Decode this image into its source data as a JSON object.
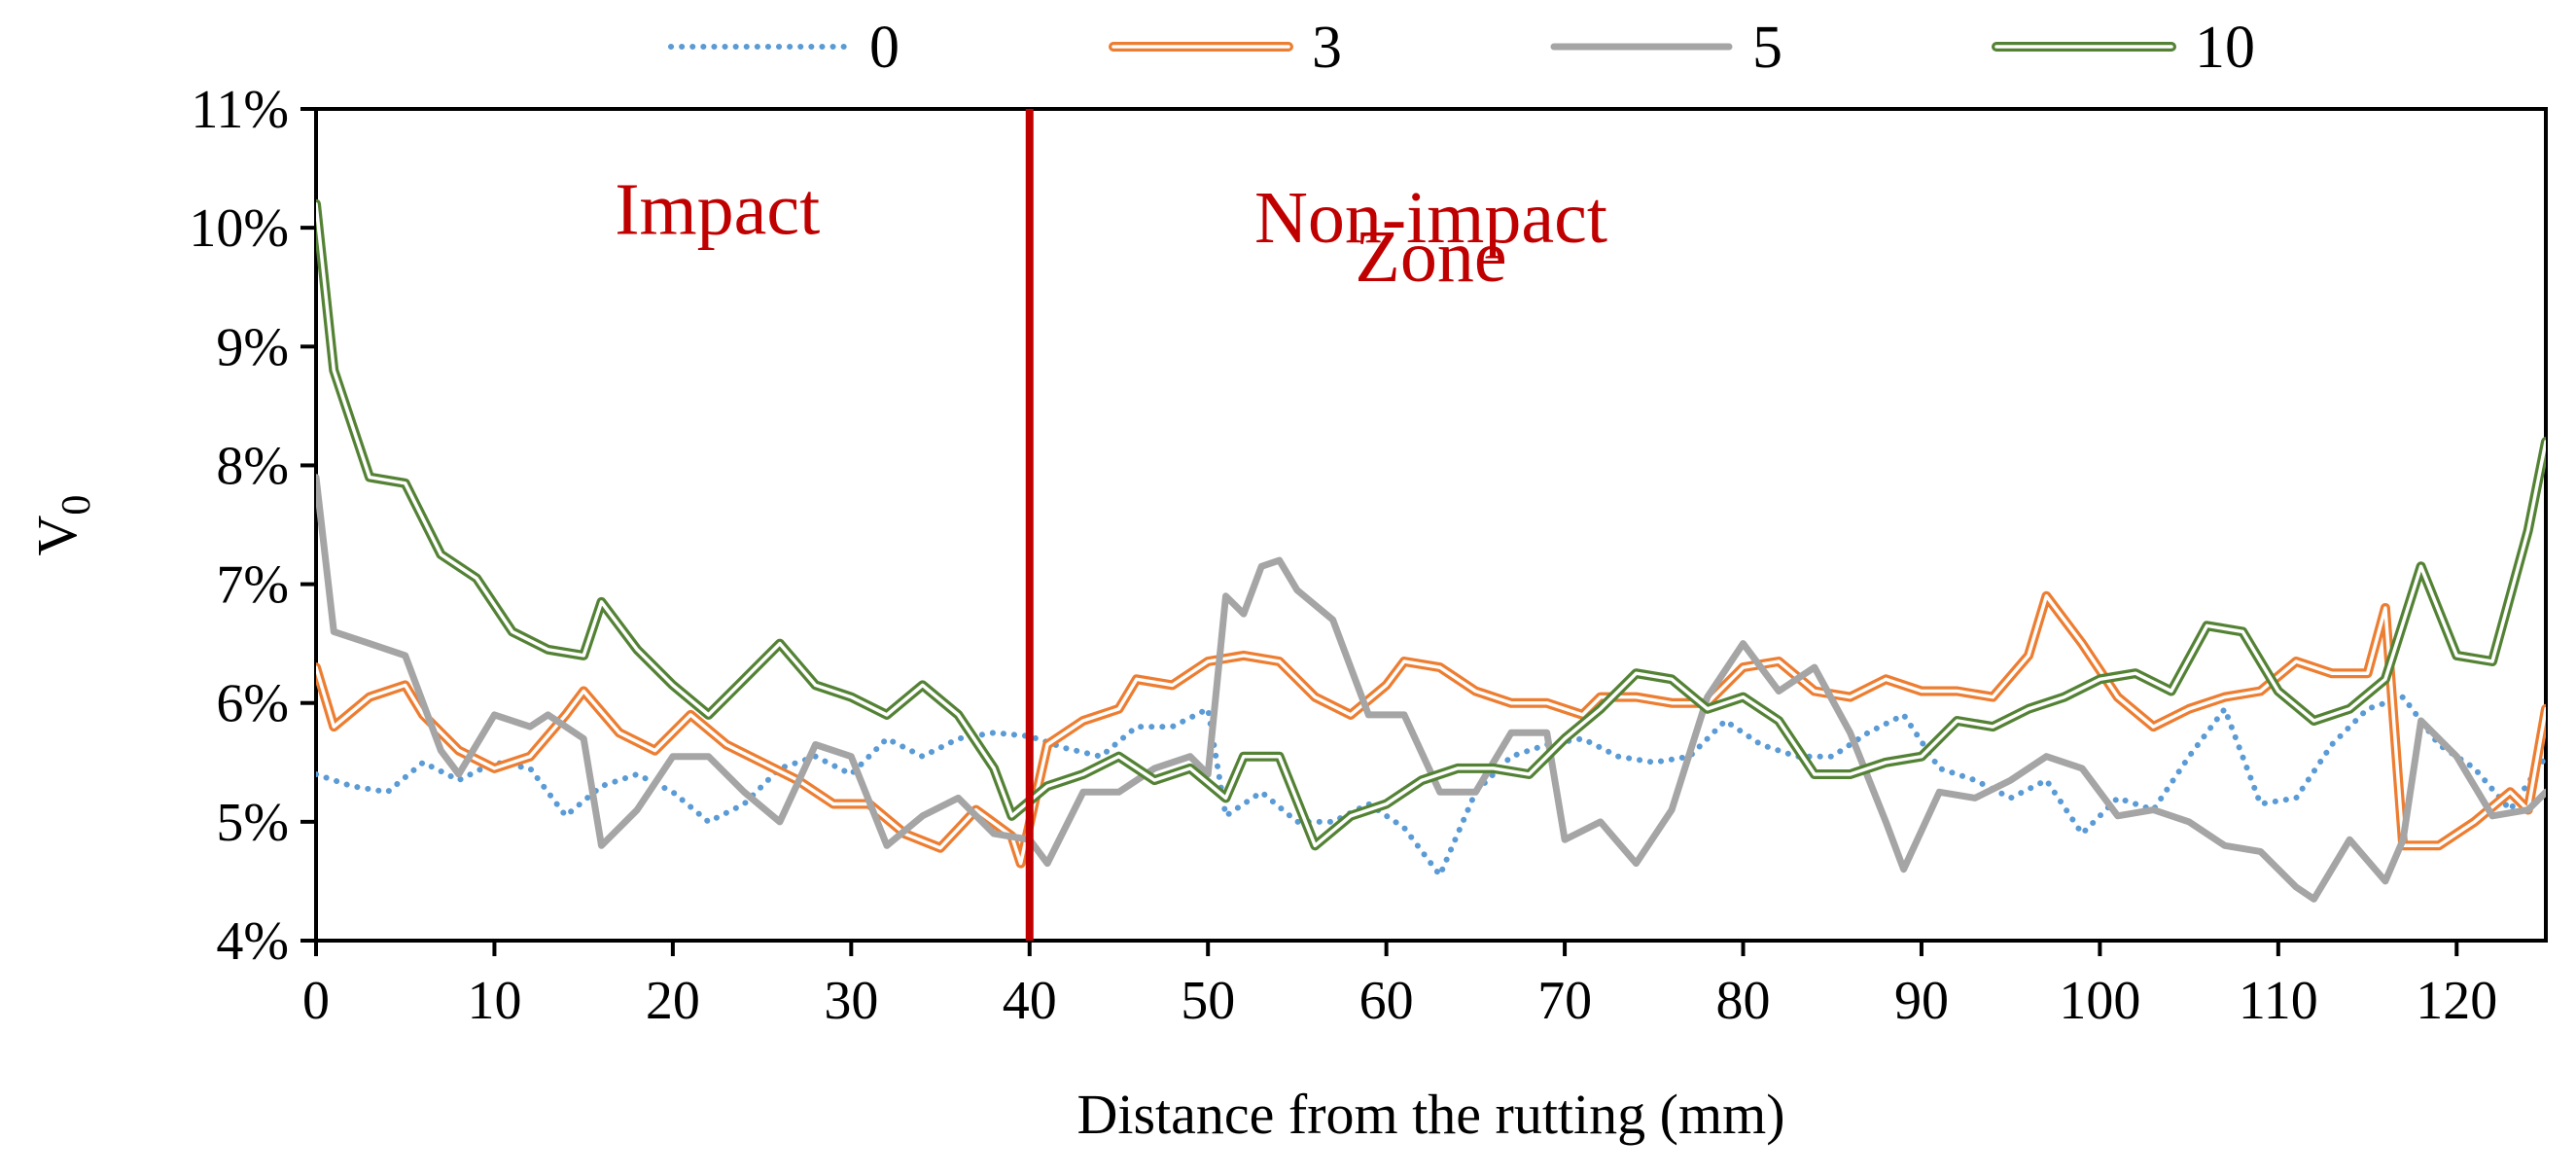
{
  "chart_data": {
    "type": "line",
    "title": "",
    "xlabel": "Distance from the rutting (mm)",
    "ylabel": "V",
    "ylabel_subscript": "0",
    "xlim": [
      0,
      125
    ],
    "ylim": [
      0.04,
      0.11
    ],
    "x_ticks": [
      0,
      10,
      20,
      30,
      40,
      50,
      60,
      70,
      80,
      90,
      100,
      110,
      120
    ],
    "y_ticks": [
      0.04,
      0.05,
      0.06,
      0.07,
      0.08,
      0.09,
      0.1,
      0.11
    ],
    "y_tick_labels": [
      "4%",
      "5%",
      "6%",
      "7%",
      "8%",
      "9%",
      "10%",
      "11%"
    ],
    "grid": false,
    "legend_position": "top",
    "divider": {
      "x": 40,
      "color": "#c00000"
    },
    "annotations": [
      {
        "text": "Impact",
        "x": 22.5,
        "y": 0.0995
      },
      {
        "text": "Non-impact",
        "x": 62.5,
        "y": 0.0988
      },
      {
        "text": "Zone",
        "x": 62.5,
        "y": 0.0955
      }
    ],
    "series": [
      {
        "name": "0",
        "color": "#5b9bd5",
        "style": "dotted",
        "points": [
          [
            0,
            0.054
          ],
          [
            2,
            0.053
          ],
          [
            4,
            0.0525
          ],
          [
            6,
            0.055
          ],
          [
            8,
            0.0535
          ],
          [
            10,
            0.055
          ],
          [
            12,
            0.0545
          ],
          [
            14,
            0.0505
          ],
          [
            16,
            0.053
          ],
          [
            18,
            0.054
          ],
          [
            20,
            0.0525
          ],
          [
            22,
            0.05
          ],
          [
            24,
            0.0515
          ],
          [
            26,
            0.0545
          ],
          [
            28,
            0.0555
          ],
          [
            30,
            0.054
          ],
          [
            32,
            0.057
          ],
          [
            34,
            0.0555
          ],
          [
            36,
            0.057
          ],
          [
            38,
            0.0575
          ],
          [
            40,
            0.0572
          ],
          [
            42,
            0.0562
          ],
          [
            44,
            0.0555
          ],
          [
            46,
            0.058
          ],
          [
            48,
            0.058
          ],
          [
            50,
            0.0595
          ],
          [
            51,
            0.0505
          ],
          [
            53,
            0.0525
          ],
          [
            55,
            0.05
          ],
          [
            57,
            0.05
          ],
          [
            59,
            0.0515
          ],
          [
            61,
            0.0495
          ],
          [
            63,
            0.0455
          ],
          [
            65,
            0.0525
          ],
          [
            67,
            0.0555
          ],
          [
            69,
            0.0565
          ],
          [
            71,
            0.057
          ],
          [
            73,
            0.0555
          ],
          [
            75,
            0.055
          ],
          [
            77,
            0.0555
          ],
          [
            79,
            0.0585
          ],
          [
            81,
            0.0565
          ],
          [
            83,
            0.0555
          ],
          [
            85,
            0.0555
          ],
          [
            87,
            0.0575
          ],
          [
            89,
            0.059
          ],
          [
            91,
            0.0545
          ],
          [
            93,
            0.0535
          ],
          [
            95,
            0.052
          ],
          [
            97,
            0.0535
          ],
          [
            99,
            0.049
          ],
          [
            101,
            0.052
          ],
          [
            103,
            0.051
          ],
          [
            105,
            0.0555
          ],
          [
            107,
            0.0595
          ],
          [
            109,
            0.0515
          ],
          [
            111,
            0.052
          ],
          [
            113,
            0.0565
          ],
          [
            115,
            0.0595
          ],
          [
            117,
            0.0605
          ],
          [
            119,
            0.0565
          ],
          [
            121,
            0.0545
          ],
          [
            123,
            0.051
          ],
          [
            125,
            0.0555
          ]
        ]
      },
      {
        "name": "3",
        "color": "#ed7d31",
        "style": "double",
        "points": [
          [
            0,
            0.063
          ],
          [
            1,
            0.058
          ],
          [
            3,
            0.0605
          ],
          [
            5,
            0.0615
          ],
          [
            6,
            0.059
          ],
          [
            8,
            0.056
          ],
          [
            10,
            0.0545
          ],
          [
            12,
            0.0555
          ],
          [
            14,
            0.059
          ],
          [
            15,
            0.061
          ],
          [
            17,
            0.0575
          ],
          [
            19,
            0.056
          ],
          [
            21,
            0.059
          ],
          [
            23,
            0.0565
          ],
          [
            25,
            0.055
          ],
          [
            27,
            0.0535
          ],
          [
            29,
            0.0515
          ],
          [
            31,
            0.0515
          ],
          [
            33,
            0.049
          ],
          [
            35,
            0.0478
          ],
          [
            37,
            0.051
          ],
          [
            39,
            0.0488
          ],
          [
            39.5,
            0.0465
          ],
          [
            41,
            0.0565
          ],
          [
            43,
            0.0585
          ],
          [
            45,
            0.0595
          ],
          [
            46,
            0.062
          ],
          [
            48,
            0.0615
          ],
          [
            50,
            0.0635
          ],
          [
            52,
            0.064
          ],
          [
            54,
            0.0635
          ],
          [
            56,
            0.0605
          ],
          [
            58,
            0.059
          ],
          [
            60,
            0.0615
          ],
          [
            61,
            0.0635
          ],
          [
            63,
            0.063
          ],
          [
            65,
            0.061
          ],
          [
            67,
            0.06
          ],
          [
            69,
            0.06
          ],
          [
            71,
            0.059
          ],
          [
            72,
            0.0605
          ],
          [
            74,
            0.0605
          ],
          [
            76,
            0.06
          ],
          [
            78,
            0.06
          ],
          [
            80,
            0.063
          ],
          [
            82,
            0.0635
          ],
          [
            84,
            0.061
          ],
          [
            86,
            0.0605
          ],
          [
            88,
            0.062
          ],
          [
            90,
            0.061
          ],
          [
            92,
            0.061
          ],
          [
            94,
            0.0605
          ],
          [
            96,
            0.064
          ],
          [
            97,
            0.069
          ],
          [
            99,
            0.065
          ],
          [
            101,
            0.0605
          ],
          [
            103,
            0.058
          ],
          [
            105,
            0.0595
          ],
          [
            107,
            0.0605
          ],
          [
            109,
            0.061
          ],
          [
            111,
            0.0635
          ],
          [
            113,
            0.0625
          ],
          [
            115,
            0.0625
          ],
          [
            116,
            0.068
          ],
          [
            117,
            0.048
          ],
          [
            119,
            0.048
          ],
          [
            121,
            0.05
          ],
          [
            123,
            0.0525
          ],
          [
            124,
            0.051
          ],
          [
            125,
            0.0595
          ]
        ]
      },
      {
        "name": "5",
        "color": "#a5a5a5",
        "style": "solid",
        "points": [
          [
            0,
            0.079
          ],
          [
            1,
            0.066
          ],
          [
            3,
            0.065
          ],
          [
            5,
            0.064
          ],
          [
            7,
            0.056
          ],
          [
            8,
            0.054
          ],
          [
            10,
            0.059
          ],
          [
            12,
            0.058
          ],
          [
            13,
            0.059
          ],
          [
            15,
            0.057
          ],
          [
            16,
            0.048
          ],
          [
            18,
            0.051
          ],
          [
            20,
            0.0555
          ],
          [
            22,
            0.0555
          ],
          [
            24,
            0.0525
          ],
          [
            26,
            0.05
          ],
          [
            28,
            0.0565
          ],
          [
            30,
            0.0555
          ],
          [
            32,
            0.048
          ],
          [
            34,
            0.0505
          ],
          [
            36,
            0.052
          ],
          [
            38,
            0.049
          ],
          [
            40,
            0.0485
          ],
          [
            41,
            0.0465
          ],
          [
            43,
            0.0525
          ],
          [
            45,
            0.0525
          ],
          [
            47,
            0.0545
          ],
          [
            49,
            0.0555
          ],
          [
            50,
            0.054
          ],
          [
            51,
            0.069
          ],
          [
            52,
            0.0675
          ],
          [
            53,
            0.0715
          ],
          [
            54,
            0.072
          ],
          [
            55,
            0.0695
          ],
          [
            57,
            0.067
          ],
          [
            59,
            0.059
          ],
          [
            61,
            0.059
          ],
          [
            63,
            0.0525
          ],
          [
            65,
            0.0525
          ],
          [
            67,
            0.0575
          ],
          [
            69,
            0.0575
          ],
          [
            70,
            0.0485
          ],
          [
            72,
            0.05
          ],
          [
            74,
            0.0465
          ],
          [
            76,
            0.051
          ],
          [
            78,
            0.0605
          ],
          [
            80,
            0.065
          ],
          [
            82,
            0.061
          ],
          [
            84,
            0.063
          ],
          [
            86,
            0.0575
          ],
          [
            88,
            0.05
          ],
          [
            89,
            0.046
          ],
          [
            91,
            0.0525
          ],
          [
            93,
            0.052
          ],
          [
            95,
            0.0535
          ],
          [
            97,
            0.0555
          ],
          [
            99,
            0.0545
          ],
          [
            101,
            0.0505
          ],
          [
            103,
            0.051
          ],
          [
            105,
            0.05
          ],
          [
            107,
            0.048
          ],
          [
            109,
            0.0475
          ],
          [
            111,
            0.0445
          ],
          [
            112,
            0.0435
          ],
          [
            114,
            0.0485
          ],
          [
            116,
            0.045
          ],
          [
            117,
            0.0485
          ],
          [
            118,
            0.0585
          ],
          [
            120,
            0.0555
          ],
          [
            122,
            0.0505
          ],
          [
            124,
            0.051
          ],
          [
            125,
            0.0525
          ]
        ]
      },
      {
        "name": "10",
        "color": "#548235",
        "style": "double",
        "points": [
          [
            0,
            0.102
          ],
          [
            1,
            0.088
          ],
          [
            3,
            0.079
          ],
          [
            5,
            0.0785
          ],
          [
            7,
            0.0725
          ],
          [
            9,
            0.0705
          ],
          [
            11,
            0.066
          ],
          [
            13,
            0.0645
          ],
          [
            15,
            0.064
          ],
          [
            16,
            0.0685
          ],
          [
            18,
            0.0645
          ],
          [
            20,
            0.0615
          ],
          [
            22,
            0.059
          ],
          [
            24,
            0.062
          ],
          [
            26,
            0.065
          ],
          [
            28,
            0.0615
          ],
          [
            30,
            0.0605
          ],
          [
            32,
            0.059
          ],
          [
            34,
            0.0615
          ],
          [
            36,
            0.059
          ],
          [
            38,
            0.0545
          ],
          [
            39,
            0.0505
          ],
          [
            41,
            0.053
          ],
          [
            43,
            0.054
          ],
          [
            45,
            0.0555
          ],
          [
            47,
            0.0535
          ],
          [
            49,
            0.0545
          ],
          [
            51,
            0.052
          ],
          [
            52,
            0.0555
          ],
          [
            54,
            0.0555
          ],
          [
            56,
            0.048
          ],
          [
            58,
            0.0505
          ],
          [
            60,
            0.0515
          ],
          [
            62,
            0.0535
          ],
          [
            64,
            0.0545
          ],
          [
            66,
            0.0545
          ],
          [
            68,
            0.054
          ],
          [
            70,
            0.057
          ],
          [
            72,
            0.0595
          ],
          [
            74,
            0.0625
          ],
          [
            76,
            0.062
          ],
          [
            78,
            0.0595
          ],
          [
            80,
            0.0605
          ],
          [
            82,
            0.0585
          ],
          [
            84,
            0.054
          ],
          [
            86,
            0.054
          ],
          [
            88,
            0.055
          ],
          [
            90,
            0.0555
          ],
          [
            92,
            0.0585
          ],
          [
            94,
            0.058
          ],
          [
            96,
            0.0595
          ],
          [
            98,
            0.0605
          ],
          [
            100,
            0.062
          ],
          [
            102,
            0.0625
          ],
          [
            104,
            0.061
          ],
          [
            106,
            0.0665
          ],
          [
            108,
            0.066
          ],
          [
            110,
            0.061
          ],
          [
            112,
            0.0585
          ],
          [
            114,
            0.0595
          ],
          [
            116,
            0.062
          ],
          [
            118,
            0.0715
          ],
          [
            120,
            0.064
          ],
          [
            122,
            0.0635
          ],
          [
            124,
            0.0745
          ],
          [
            125,
            0.082
          ]
        ]
      }
    ]
  }
}
